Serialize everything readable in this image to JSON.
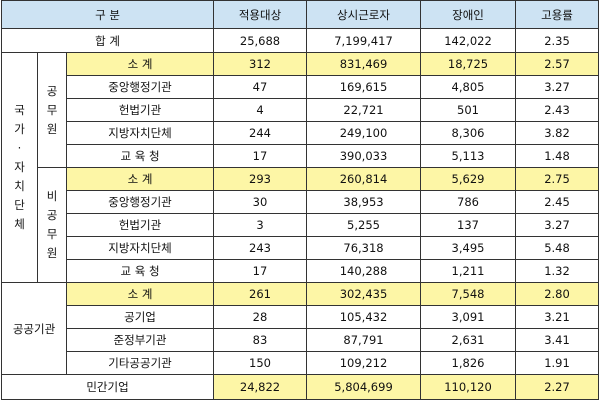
{
  "header": {
    "division": "구 분",
    "columns": [
      "적용대상",
      "상시근로자",
      "장애인",
      "고용률"
    ]
  },
  "total": {
    "label": "합 계",
    "values": [
      "25,688",
      "7,199,417",
      "142,022",
      "2.35"
    ]
  },
  "sections": {
    "national": {
      "category": [
        "국",
        "가",
        "·",
        "자",
        "치",
        "단",
        "체"
      ],
      "public_servant": {
        "group": [
          "공",
          "무",
          "원"
        ],
        "rows": [
          {
            "label": "소 계",
            "values": [
              "312",
              "831,469",
              "18,725",
              "2.57"
            ]
          },
          {
            "label": "중앙행정기관",
            "values": [
              "47",
              "169,615",
              "4,805",
              "3.27"
            ]
          },
          {
            "label": "헌법기관",
            "values": [
              "4",
              "22,721",
              "501",
              "2.43"
            ]
          },
          {
            "label": "지방자치단체",
            "values": [
              "244",
              "249,100",
              "8,306",
              "3.82"
            ]
          },
          {
            "label": "교 육 청",
            "values": [
              "17",
              "390,033",
              "5,113",
              "1.48"
            ]
          }
        ]
      },
      "non_public_servant": {
        "group": [
          "비",
          "공",
          "무",
          "원"
        ],
        "rows": [
          {
            "label": "소 계",
            "values": [
              "293",
              "260,814",
              "5,629",
              "2.75"
            ]
          },
          {
            "label": "중앙행정기관",
            "values": [
              "30",
              "38,953",
              "786",
              "2.45"
            ]
          },
          {
            "label": "헌법기관",
            "values": [
              "3",
              "5,255",
              "137",
              "3.27"
            ]
          },
          {
            "label": "지방자치단체",
            "values": [
              "243",
              "76,318",
              "3,495",
              "5.48"
            ]
          },
          {
            "label": "교 육 청",
            "values": [
              "17",
              "140,288",
              "1,211",
              "1.32"
            ]
          }
        ]
      }
    },
    "public_institution": {
      "category": "공공기관",
      "rows": [
        {
          "label": "소 계",
          "values": [
            "261",
            "302,435",
            "7,548",
            "2.80"
          ]
        },
        {
          "label": "공기업",
          "values": [
            "28",
            "105,432",
            "3,091",
            "3.21"
          ]
        },
        {
          "label": "준정부기관",
          "values": [
            "83",
            "87,791",
            "2,631",
            "3.41"
          ]
        },
        {
          "label": "기타공공기관",
          "values": [
            "150",
            "109,212",
            "1,826",
            "1.91"
          ]
        }
      ]
    },
    "private": {
      "label": "민간기업",
      "values": [
        "24,822",
        "5,804,699",
        "110,120",
        "2.27"
      ]
    }
  },
  "colors": {
    "header_bg": "#cde3f3",
    "subtotal_bg": "#fdf6a6",
    "border": "#333333"
  }
}
